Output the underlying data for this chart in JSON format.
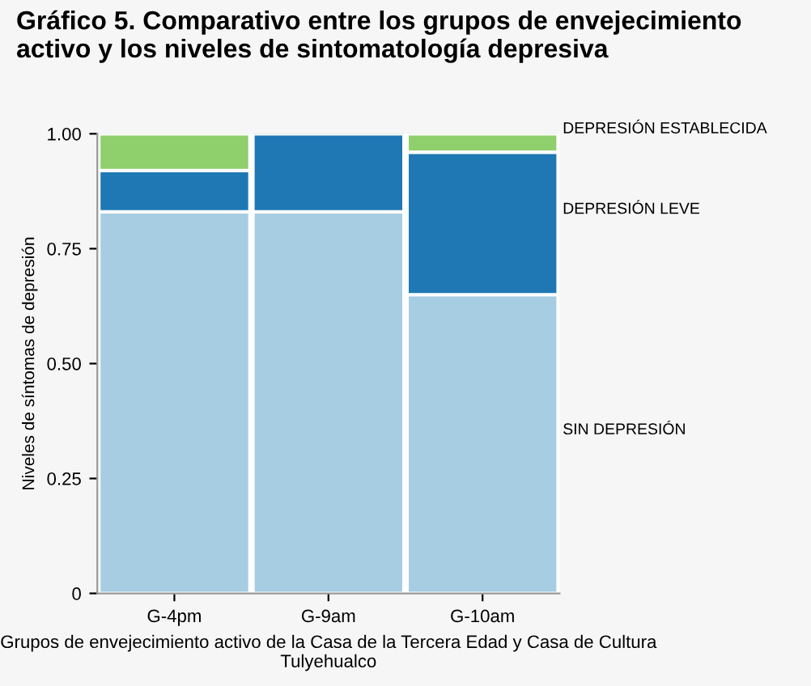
{
  "chart_data": {
    "type": "bar",
    "stacked": true,
    "title": "Gráfico 5. Comparativo entre los grupos de envejecimiento activo y los niveles de sintomatología depresiva",
    "xlabel": "Grupos de envejecimiento activo de la Casa de la Tercera Edad y Casa de Cultura Tulyehualco",
    "ylabel": "Niveles de síntomas de depresión",
    "categories": [
      "G-4pm",
      "G-9am",
      "G-10am"
    ],
    "series": [
      {
        "name": "SIN DEPRESIÓN",
        "color": "#a6cde2",
        "values": [
          0.83,
          0.83,
          0.65
        ]
      },
      {
        "name": "DEPRESIÓN LEVE",
        "color": "#1f78b4",
        "values": [
          0.09,
          0.17,
          0.31
        ]
      },
      {
        "name": "DEPRESIÓN ESTABLECIDA",
        "color": "#8fcf6c",
        "values": [
          0.08,
          null,
          0.04
        ]
      }
    ],
    "ylim": [
      0,
      1.0
    ],
    "yticks": [
      {
        "value": 0,
        "label": "0"
      },
      {
        "value": 0.25,
        "label": "0.25"
      },
      {
        "value": 0.5,
        "label": "0.50"
      },
      {
        "value": 0.75,
        "label": "0.75"
      },
      {
        "value": 1.0,
        "label": "1.00"
      }
    ],
    "grid": false
  }
}
